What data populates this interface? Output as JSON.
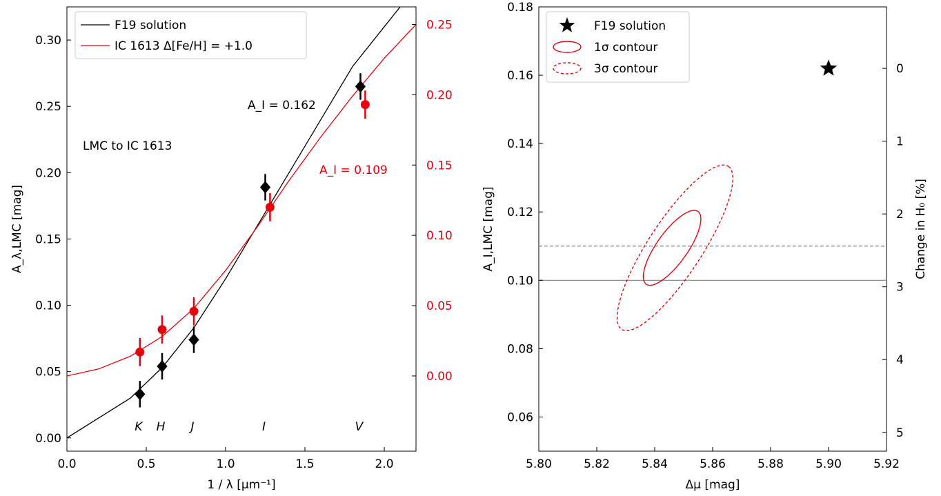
{
  "chart_data": [
    {
      "type": "scatter",
      "xlabel": "1 / λ [μm⁻¹]",
      "ylabel": "A_λ,LMC [mag]",
      "y2label": "",
      "xlim": [
        0,
        2.2
      ],
      "ylim": [
        -0.01,
        0.325
      ],
      "y2lim": [
        -0.0535,
        0.2625
      ],
      "xticks": [
        "0.0",
        "0.5",
        "1.0",
        "1.5",
        "2.0"
      ],
      "yticks": [
        "0.00",
        "0.05",
        "0.10",
        "0.15",
        "0.20",
        "0.25",
        "0.30"
      ],
      "y2ticks": [
        "0.00",
        "0.05",
        "0.10",
        "0.15",
        "0.20",
        "0.25"
      ],
      "legend_placement": "top-left",
      "legend": {
        "f19": "F19 solution",
        "ic1613": "IC 1613 Δ[Fe/H] = +1.0"
      },
      "annotations": {
        "region": "LMC to IC 1613",
        "ai_black": "A_I = 0.162",
        "ai_red": "A_I = 0.109"
      },
      "bands": [
        "K",
        "H",
        "J",
        "I",
        "V"
      ],
      "series": [
        {
          "name": "F19 solution",
          "color": "#000000",
          "marker": "diamond",
          "axis": "left",
          "x": [
            0.46,
            0.6,
            0.8,
            1.25,
            1.85
          ],
          "y": [
            0.033,
            0.054,
            0.074,
            0.189,
            0.265
          ],
          "yerr": [
            0.01,
            0.01,
            0.01,
            0.01,
            0.01
          ]
        },
        {
          "name": "IC 1613 Δ[Fe/H] = +1.0",
          "color": "#e8000b",
          "marker": "circle",
          "axis": "right",
          "x": [
            0.46,
            0.6,
            0.8,
            1.28,
            1.88
          ],
          "y": [
            0.017,
            0.033,
            0.046,
            0.12,
            0.193
          ],
          "yerr": [
            0.01,
            0.01,
            0.01,
            0.01,
            0.01
          ]
        }
      ],
      "curves": {
        "f19": {
          "x": [
            0.0,
            0.2,
            0.4,
            0.6,
            0.8,
            1.0,
            1.2,
            1.4,
            1.6,
            1.8,
            2.0,
            2.1
          ],
          "y": [
            0.0,
            0.015,
            0.03,
            0.053,
            0.083,
            0.12,
            0.16,
            0.2,
            0.24,
            0.28,
            0.31,
            0.325
          ]
        },
        "ic1613": {
          "x": [
            0.0,
            0.2,
            0.4,
            0.6,
            0.8,
            1.0,
            1.2,
            1.4,
            1.6,
            1.8,
            2.0,
            2.2
          ],
          "y": [
            0.0,
            0.005,
            0.014,
            0.028,
            0.048,
            0.075,
            0.106,
            0.139,
            0.17,
            0.199,
            0.226,
            0.25
          ]
        }
      }
    },
    {
      "type": "scatter",
      "xlabel": "Δμ [mag]",
      "ylabel": "A_I,LMC [mag]",
      "y2label": "Change in H₀ [%]",
      "xlim": [
        5.8,
        5.92
      ],
      "ylim": [
        0.05,
        0.18
      ],
      "xticks": [
        "5.80",
        "5.82",
        "5.84",
        "5.86",
        "5.88",
        "5.90",
        "5.92"
      ],
      "yticks": [
        "0.06",
        "0.08",
        "0.10",
        "0.12",
        "0.14",
        "0.16",
        "0.18"
      ],
      "y2ticks": [
        "0",
        "1",
        "2",
        "3",
        "4",
        "5"
      ],
      "legend_placement": "top-left",
      "legend": {
        "star": "F19 solution",
        "c1": "1σ contour",
        "c3": "3σ contour"
      },
      "point": {
        "x": 5.9,
        "y": 0.162
      },
      "contour_1sigma": {
        "center": [
          5.846,
          0.1095
        ],
        "semi_major": [
          0.009,
          0.0106
        ],
        "semi_minor": [
          0.0042,
          -0.0028
        ]
      },
      "contour_3sigma": {
        "center": [
          5.847,
          0.1095
        ],
        "semi_major": [
          0.0185,
          0.0238
        ],
        "semi_minor": [
          0.0075,
          -0.0046
        ]
      },
      "hline_solid": 0.1,
      "hline_dashed": 0.11,
      "colors": {
        "contour": "#e8000b",
        "hline": "#808080"
      }
    }
  ]
}
